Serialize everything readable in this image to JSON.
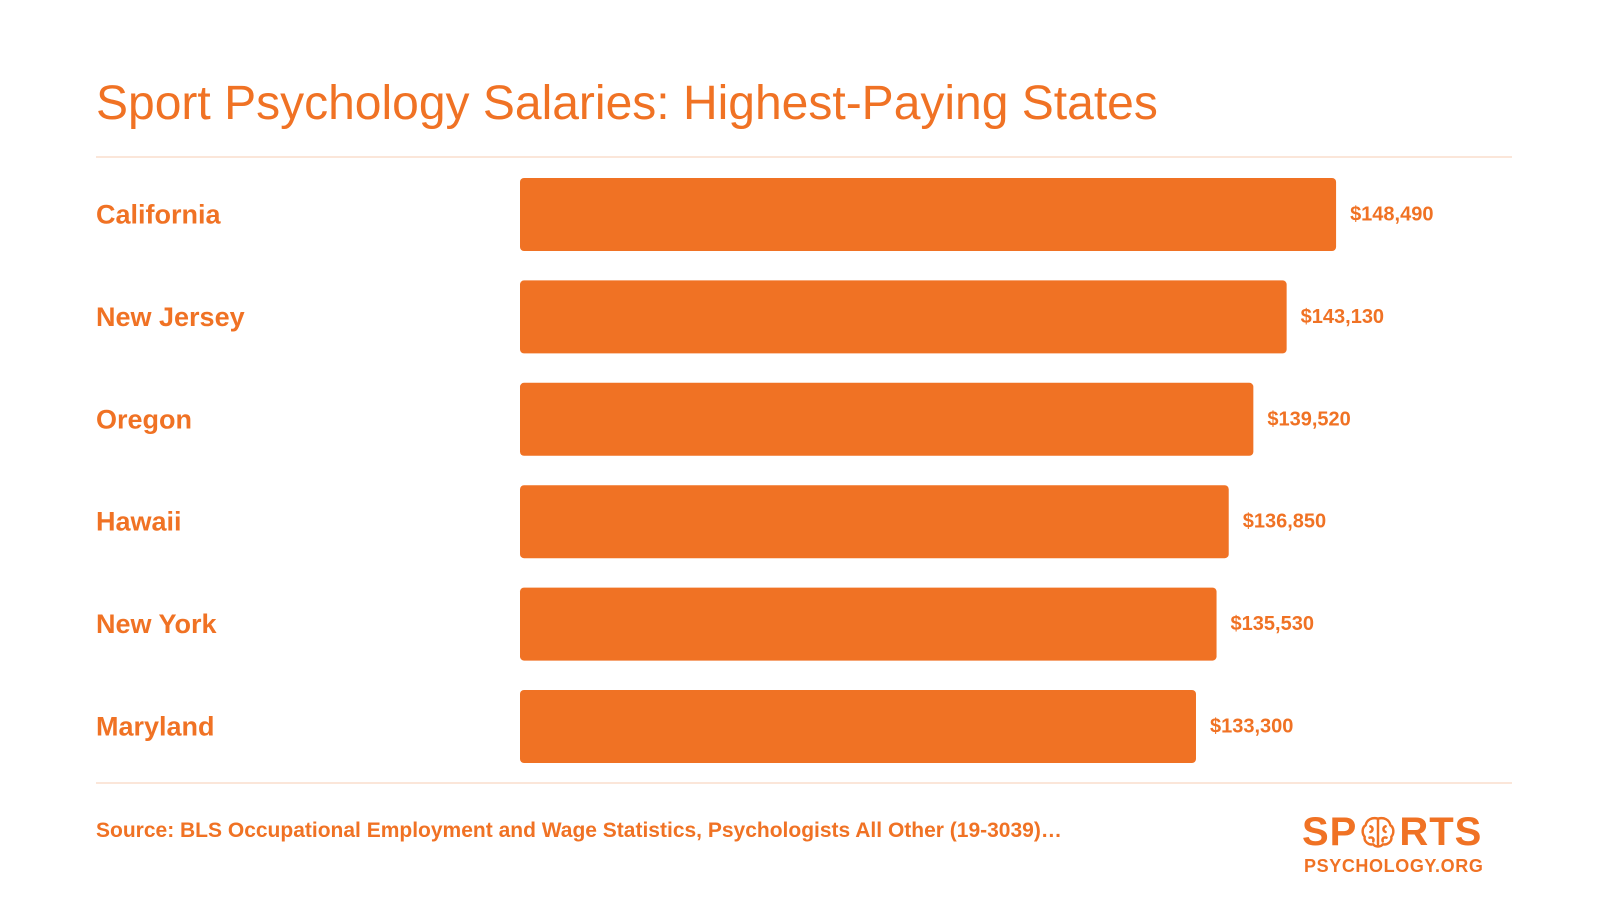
{
  "colors": {
    "accent": "#f07224",
    "rule": "#fbe6d9",
    "background": "#ffffff"
  },
  "chart_data": {
    "type": "bar",
    "orientation": "horizontal",
    "title": "Sport Psychology Salaries: Highest-Paying States",
    "categories": [
      "California",
      "New Jersey",
      "Oregon",
      "Hawaii",
      "New York",
      "Maryland"
    ],
    "values": [
      148490,
      143130,
      139520,
      136850,
      135530,
      133300
    ],
    "value_labels": [
      "$148,490",
      "$143,130",
      "$139,520",
      "$136,850",
      "$135,530",
      "$133,300"
    ],
    "xlim": [
      60000,
      150000
    ],
    "grid": false,
    "legend": "none"
  },
  "footer": {
    "source": "Source: BLS Occupational Employment and Wage Statistics, Psychologists All Other (19-3039)…"
  },
  "logo": {
    "word_start": "SP",
    "word_end": "RTS",
    "subtitle": "PSYCHOLOGY.ORG",
    "icon": "brain-icon"
  }
}
